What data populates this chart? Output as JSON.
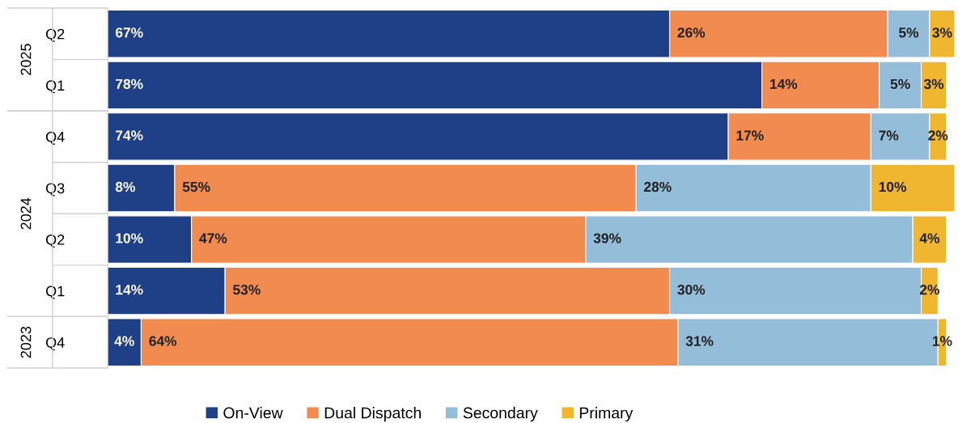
{
  "chart_data": {
    "type": "bar",
    "orientation": "horizontal",
    "stacked": true,
    "categories": [
      "Q2",
      "Q1",
      "Q4",
      "Q3",
      "Q2",
      "Q1",
      "Q4"
    ],
    "annotations": [
      "2025",
      "2024",
      "2023"
    ],
    "xlim": [
      0,
      101
    ],
    "tick_labels": "y",
    "grid": false,
    "legend": "bottom",
    "series": [
      {
        "name": "On-View",
        "color": "#1f3f87",
        "values": [
          67,
          78,
          74,
          8,
          10,
          14,
          4
        ],
        "value_labels": [
          "67%",
          "78%",
          "74%",
          "8%",
          "10%",
          "14%",
          "4%"
        ]
      },
      {
        "name": "Dual Dispatch",
        "color": "#f28b50",
        "values": [
          26,
          14,
          17,
          55,
          47,
          53,
          64
        ],
        "value_labels": [
          "26%",
          "14%",
          "17%",
          "55%",
          "47%",
          "53%",
          "64%"
        ]
      },
      {
        "name": "Secondary",
        "color": "#93bdd8",
        "values": [
          5,
          5,
          7,
          28,
          39,
          30,
          31
        ],
        "value_labels": [
          "5%",
          "5%",
          "7%",
          "28%",
          "39%",
          "30%",
          "31%"
        ]
      },
      {
        "name": "Primary",
        "color": "#f0b630",
        "values": [
          3,
          3,
          2,
          10,
          4,
          2,
          1
        ],
        "value_labels": [
          "3%",
          "3%",
          "2%",
          "10%",
          "4%",
          "2%",
          "1%"
        ]
      }
    ]
  }
}
